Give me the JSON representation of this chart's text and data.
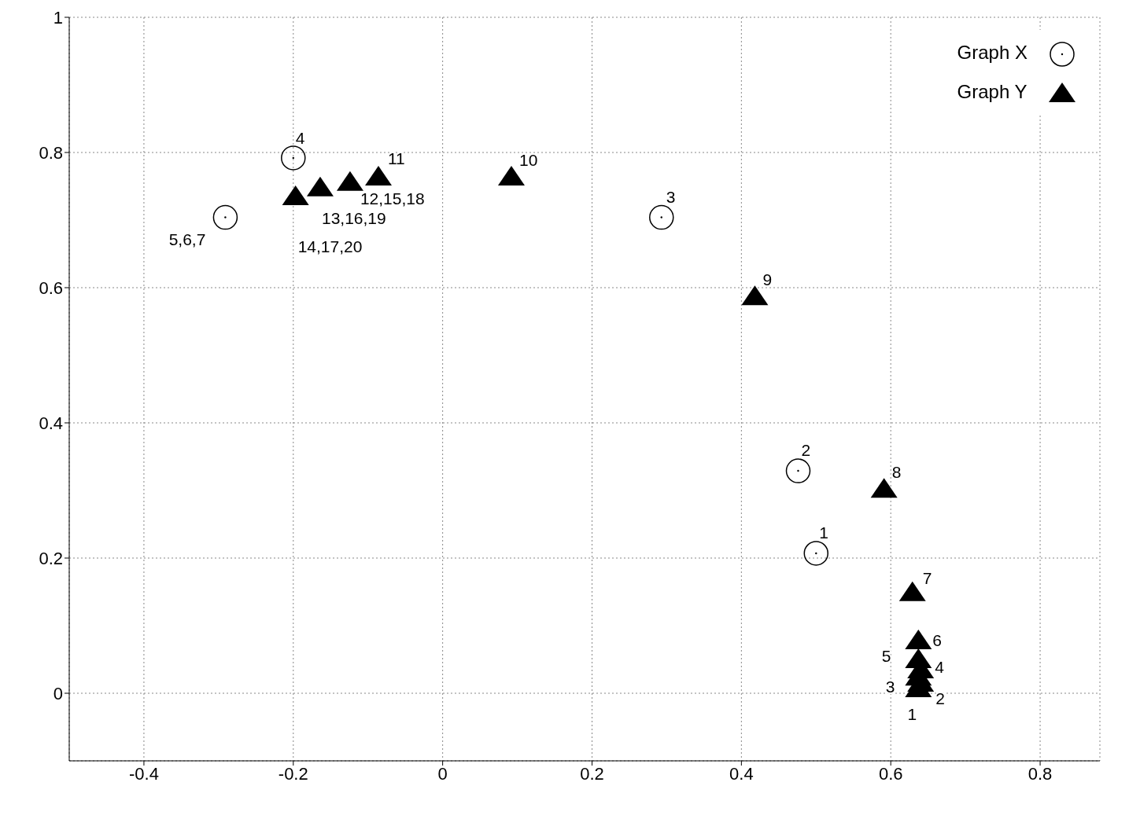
{
  "chart_data": {
    "type": "scatter",
    "xlim": [
      -0.5,
      0.88
    ],
    "xticks": [
      -0.4,
      -0.2,
      0,
      0.2,
      0.4,
      0.6,
      0.8
    ],
    "ylim": [
      -0.1,
      1
    ],
    "yticks": [
      0,
      0.2,
      0.4,
      0.6,
      0.8,
      1
    ],
    "grid": true,
    "legend": "top right",
    "series": [
      {
        "name": "Graph X",
        "color": "#000000",
        "marker": "circle",
        "x": [
          0.5,
          0.476,
          0.293,
          -0.2,
          -0.291
        ],
        "values": [
          0.207,
          0.329,
          0.704,
          0.792,
          0.704
        ]
      },
      {
        "name": "Graph Y",
        "color": "#000000",
        "marker": "triangle",
        "x": [
          0.637,
          0.64,
          0.637,
          0.64,
          0.637,
          0.637,
          0.629,
          0.591,
          0.418,
          0.092,
          -0.086,
          -0.124,
          -0.164,
          -0.197
        ],
        "values": [
          0.007,
          0.015,
          0.024,
          0.035,
          0.05,
          0.078,
          0.149,
          0.302,
          0.587,
          0.764,
          0.764,
          0.756,
          0.748,
          0.735
        ]
      }
    ],
    "annotations": [
      {
        "text": "1",
        "x": 0.5,
        "y": 0.207
      },
      {
        "text": "2",
        "x": 0.476,
        "y": 0.329
      },
      {
        "text": "3",
        "x": 0.293,
        "y": 0.704
      },
      {
        "text": "4",
        "x": -0.2,
        "y": 0.792
      },
      {
        "text": "5,6,7",
        "x": -0.291,
        "y": 0.704
      },
      {
        "text": "1",
        "x": 0.637,
        "y": 0.007
      },
      {
        "text": "2",
        "x": 0.64,
        "y": 0.015
      },
      {
        "text": "3",
        "x": 0.637,
        "y": 0.024
      },
      {
        "text": "4",
        "x": 0.64,
        "y": 0.035
      },
      {
        "text": "5",
        "x": 0.637,
        "y": 0.05
      },
      {
        "text": "6",
        "x": 0.637,
        "y": 0.078
      },
      {
        "text": "7",
        "x": 0.629,
        "y": 0.149
      },
      {
        "text": "8",
        "x": 0.591,
        "y": 0.302
      },
      {
        "text": "9",
        "x": 0.418,
        "y": 0.587
      },
      {
        "text": "10",
        "x": 0.092,
        "y": 0.764
      },
      {
        "text": "11",
        "x": -0.086,
        "y": 0.764
      },
      {
        "text": "12,15,18",
        "x": -0.124,
        "y": 0.756
      },
      {
        "text": "13,16,19",
        "x": -0.164,
        "y": 0.748
      },
      {
        "text": "14,17,20",
        "x": -0.197,
        "y": 0.735
      }
    ]
  }
}
